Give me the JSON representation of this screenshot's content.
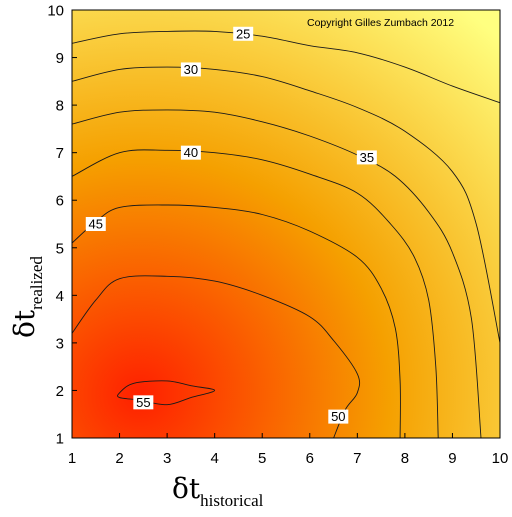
{
  "chart_data": {
    "type": "contour",
    "xlabel": {
      "symbol": "δt",
      "subscript": "historical"
    },
    "ylabel": {
      "symbol": "δt",
      "subscript": "realized"
    },
    "xlim": [
      1,
      10
    ],
    "ylim": [
      1,
      10
    ],
    "x_ticks": [
      1,
      2,
      3,
      4,
      5,
      6,
      7,
      8,
      9,
      10
    ],
    "y_ticks": [
      1,
      2,
      3,
      4,
      5,
      6,
      7,
      8,
      9,
      10
    ],
    "annotation": "Copyright Gilles Zumbach 2012",
    "colormap": {
      "low_color": "#ffff80",
      "mid_color": "#f5a000",
      "high_color": "#ff2000"
    },
    "contours": [
      {
        "level": 25,
        "label": "25",
        "label_at": [
          4.6,
          9.5
        ],
        "points": [
          [
            1,
            9.3
          ],
          [
            2,
            9.5
          ],
          [
            3,
            9.55
          ],
          [
            4,
            9.55
          ],
          [
            5,
            9.45
          ],
          [
            6,
            9.25
          ],
          [
            7,
            9.1
          ],
          [
            8,
            8.8
          ],
          [
            9,
            8.4
          ],
          [
            10,
            8.05
          ]
        ]
      },
      {
        "level": 30,
        "label": "30",
        "label_at": [
          3.5,
          8.75
        ],
        "points": [
          [
            1,
            8.5
          ],
          [
            2,
            8.75
          ],
          [
            3,
            8.8
          ],
          [
            4,
            8.75
          ],
          [
            5,
            8.6
          ],
          [
            6,
            8.3
          ],
          [
            7,
            7.95
          ],
          [
            8,
            7.45
          ],
          [
            9,
            6.6
          ],
          [
            9.5,
            5.5
          ],
          [
            10,
            3.0
          ]
        ]
      },
      {
        "level": 35,
        "label": "35",
        "label_at": [
          7.2,
          6.9
        ],
        "points": [
          [
            1,
            7.6
          ],
          [
            2,
            7.85
          ],
          [
            3,
            7.9
          ],
          [
            4,
            7.85
          ],
          [
            5,
            7.65
          ],
          [
            6,
            7.35
          ],
          [
            7,
            6.95
          ],
          [
            7.8,
            6.5
          ],
          [
            8.5,
            5.75
          ],
          [
            9,
            4.9
          ],
          [
            9.4,
            3.5
          ],
          [
            9.6,
            1.0
          ]
        ]
      },
      {
        "level": 40,
        "label": "40",
        "label_at": [
          3.5,
          7.0
        ],
        "points": [
          [
            1,
            6.5
          ],
          [
            2,
            7.0
          ],
          [
            3,
            7.05
          ],
          [
            4,
            7.0
          ],
          [
            5,
            6.85
          ],
          [
            6,
            6.55
          ],
          [
            7,
            6.15
          ],
          [
            7.7,
            5.5
          ],
          [
            8.2,
            4.8
          ],
          [
            8.5,
            3.9
          ],
          [
            8.65,
            2.5
          ],
          [
            8.7,
            1.0
          ]
        ]
      },
      {
        "level": 45,
        "label": "45",
        "label_at": [
          1.5,
          5.5
        ],
        "points": [
          [
            1,
            5.1
          ],
          [
            1.5,
            5.55
          ],
          [
            2,
            5.85
          ],
          [
            3,
            5.9
          ],
          [
            4,
            5.85
          ],
          [
            5,
            5.7
          ],
          [
            6,
            5.35
          ],
          [
            7,
            4.8
          ],
          [
            7.5,
            4.15
          ],
          [
            7.8,
            3.3
          ],
          [
            7.9,
            2.2
          ],
          [
            7.9,
            1.0
          ]
        ]
      },
      {
        "level": 50,
        "label": "50",
        "label_at": [
          6.6,
          1.45
        ],
        "points": [
          [
            1,
            3.2
          ],
          [
            1.5,
            3.9
          ],
          [
            2,
            4.35
          ],
          [
            3,
            4.4
          ],
          [
            4,
            4.3
          ],
          [
            5,
            4.0
          ],
          [
            6,
            3.55
          ],
          [
            6.5,
            3.05
          ],
          [
            7,
            2.35
          ],
          [
            7,
            1.95
          ],
          [
            6.75,
            1.6
          ],
          [
            6.5,
            1.0
          ]
        ]
      },
      {
        "level": 55,
        "label": "55",
        "label_at": [
          2.5,
          1.75
        ],
        "closed": true,
        "points": [
          [
            2,
            1.95
          ],
          [
            2.3,
            2.15
          ],
          [
            3,
            2.2
          ],
          [
            3.5,
            2.1
          ],
          [
            4,
            2.0
          ],
          [
            3.5,
            1.85
          ],
          [
            3,
            1.7
          ],
          [
            2.4,
            1.8
          ],
          [
            2,
            1.85
          ]
        ]
      }
    ]
  }
}
